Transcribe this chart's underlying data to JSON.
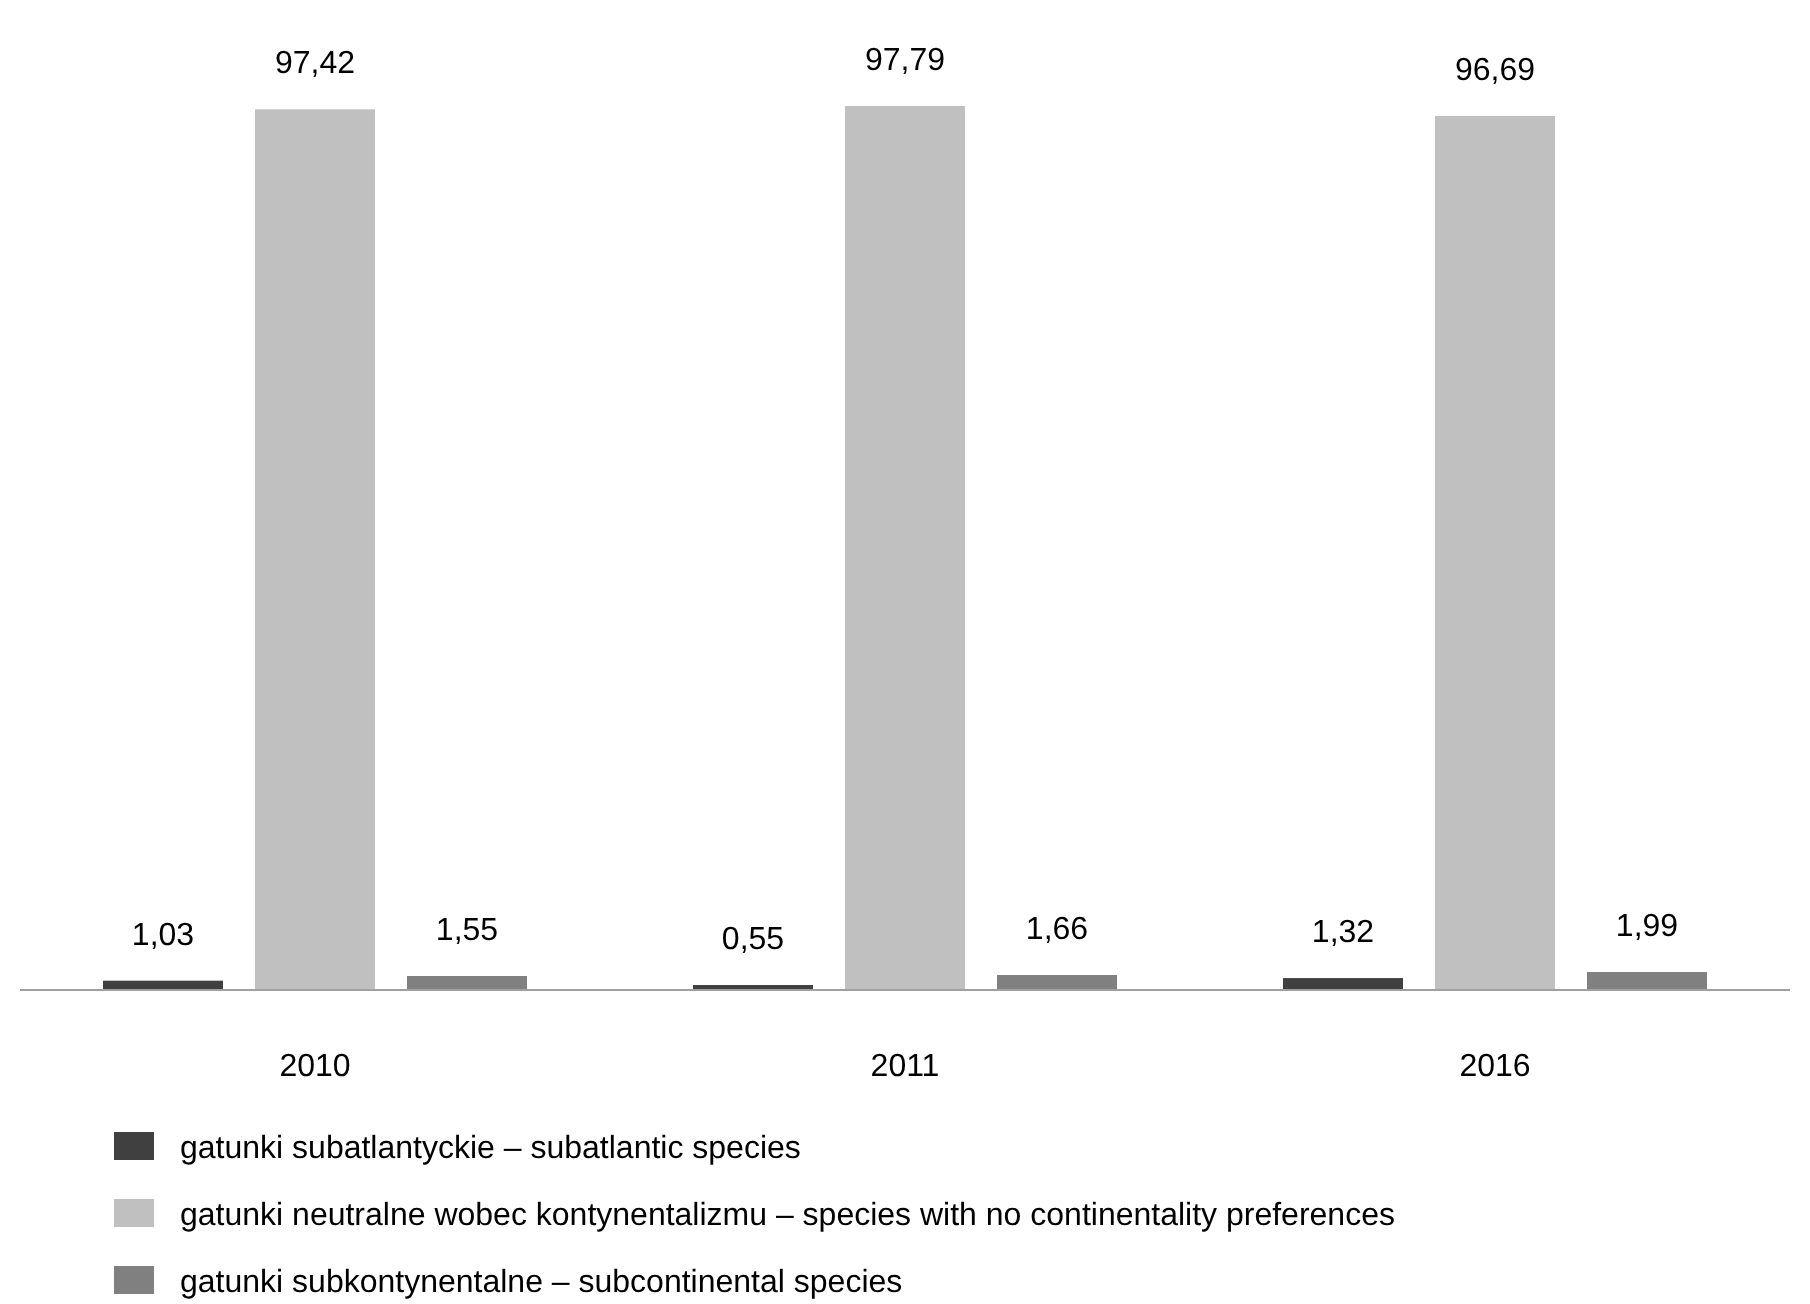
{
  "chart_data": {
    "type": "bar",
    "categories": [
      "2010",
      "2011",
      "2016"
    ],
    "legend": "bottom",
    "series": [
      {
        "name": "gatunki subatlantyckie – subatlantic species",
        "color": "#404040",
        "values": [
          1.03,
          0.55,
          1.32
        ],
        "value_labels": [
          "1,03",
          "0,55",
          "1,32"
        ]
      },
      {
        "name": "gatunki neutralne wobec kontynentalizmu – species with no continentality preferences",
        "color": "#c0c0c0",
        "values": [
          97.42,
          97.79,
          96.69
        ],
        "value_labels": [
          "97,42",
          "97,79",
          "96,69"
        ]
      },
      {
        "name": "gatunki subkontynentalne – subcontinental species",
        "color": "#808080",
        "values": [
          1.55,
          1.66,
          1.99
        ],
        "value_labels": [
          "1,55",
          "1,66",
          "1,99"
        ]
      }
    ]
  }
}
